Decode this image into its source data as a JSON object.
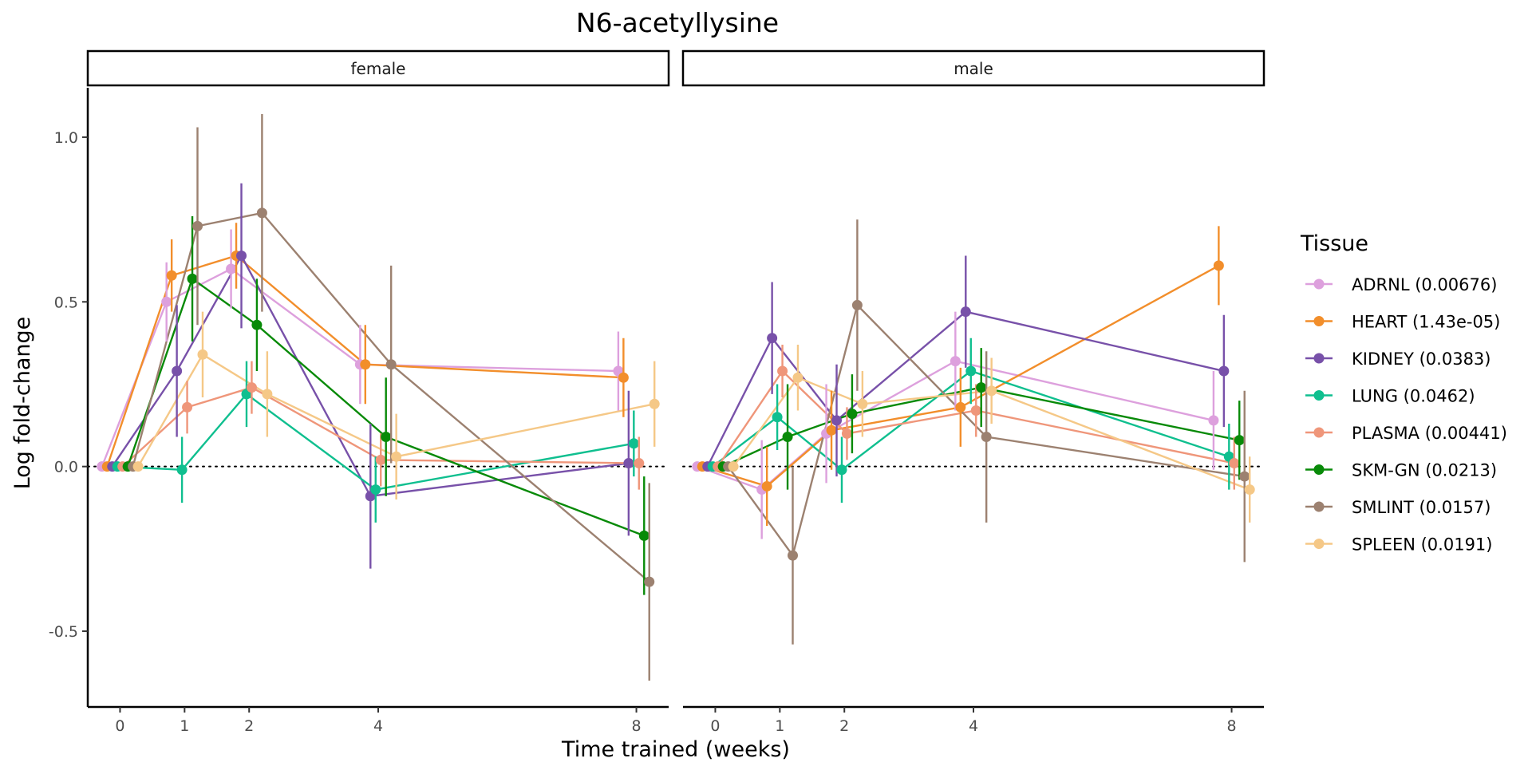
{
  "chart_data": {
    "type": "line",
    "title": "N6-acetyllysine",
    "xlabel": "Time trained (weeks)",
    "ylabel": "Log fold-change",
    "x_ticks": [
      0,
      1,
      2,
      4,
      8
    ],
    "y_ticks": [
      -0.5,
      0.0,
      0.5,
      1.0
    ],
    "y_tick_labels": [
      "-0.5",
      "0.0",
      "0.5",
      "1.0"
    ],
    "xlim": [
      -0.5,
      8.5
    ],
    "ylim": [
      -0.73,
      1.15
    ],
    "reference_line": 0,
    "legend": {
      "title": "Tissue",
      "placement": "right"
    },
    "panels": [
      {
        "label": "female",
        "series": [
          {
            "name": "ADRNL (0.00676)",
            "color": "#DDA0DD",
            "x": [
              0,
              1,
              2,
              4,
              8
            ],
            "y": [
              0,
              0.5,
              0.6,
              0.31,
              0.29
            ],
            "lower": [
              0,
              0.38,
              0.48,
              0.19,
              0.17
            ],
            "upper": [
              0,
              0.62,
              0.72,
              0.43,
              0.41
            ]
          },
          {
            "name": "HEART (1.43e-05)",
            "color": "#F28E2B",
            "x": [
              0,
              1,
              2,
              4,
              8
            ],
            "y": [
              0,
              0.58,
              0.64,
              0.31,
              0.27
            ],
            "lower": [
              0,
              0.47,
              0.54,
              0.19,
              0.15
            ],
            "upper": [
              0,
              0.69,
              0.74,
              0.43,
              0.39
            ]
          },
          {
            "name": "KIDNEY (0.0383)",
            "color": "#7851A9",
            "x": [
              0,
              1,
              2,
              4,
              8
            ],
            "y": [
              0,
              0.29,
              0.64,
              -0.09,
              0.01
            ],
            "lower": [
              0,
              0.09,
              0.42,
              -0.31,
              -0.21
            ],
            "upper": [
              0,
              0.49,
              0.86,
              0.13,
              0.23
            ]
          },
          {
            "name": "LUNG (0.0462)",
            "color": "#0FBF8F",
            "x": [
              0,
              1,
              2,
              4,
              8
            ],
            "y": [
              0,
              -0.01,
              0.22,
              -0.07,
              0.07
            ],
            "lower": [
              0,
              -0.11,
              0.12,
              -0.17,
              -0.03
            ],
            "upper": [
              0,
              0.09,
              0.32,
              0.03,
              0.17
            ]
          },
          {
            "name": "PLASMA (0.00441)",
            "color": "#EF967A",
            "x": [
              0,
              1,
              2,
              4,
              8
            ],
            "y": [
              0,
              0.18,
              0.24,
              0.02,
              0.01
            ],
            "lower": [
              0,
              0.1,
              0.16,
              -0.06,
              -0.07
            ],
            "upper": [
              0,
              0.26,
              0.32,
              0.1,
              0.09
            ]
          },
          {
            "name": "SKM-GN (0.0213)",
            "color": "#088A08",
            "x": [
              0,
              1,
              2,
              4,
              8
            ],
            "y": [
              0,
              0.57,
              0.43,
              0.09,
              -0.21
            ],
            "lower": [
              0,
              0.38,
              0.29,
              -0.09,
              -0.39
            ],
            "upper": [
              0,
              0.76,
              0.57,
              0.27,
              -0.03
            ]
          },
          {
            "name": "SMLINT (0.0157)",
            "color": "#9C8170",
            "x": [
              0,
              1,
              2,
              4,
              8
            ],
            "y": [
              0,
              0.73,
              0.77,
              0.31,
              -0.35
            ],
            "lower": [
              0,
              0.43,
              0.47,
              0.01,
              -0.65
            ],
            "upper": [
              0,
              1.03,
              1.07,
              0.61,
              -0.05
            ]
          },
          {
            "name": "SPLEEN (0.0191)",
            "color": "#F5C887",
            "x": [
              0,
              1,
              2,
              4,
              8
            ],
            "y": [
              0,
              0.34,
              0.22,
              0.03,
              0.19
            ],
            "lower": [
              0,
              0.21,
              0.09,
              -0.1,
              0.06
            ],
            "upper": [
              0,
              0.47,
              0.35,
              0.16,
              0.32
            ]
          }
        ]
      },
      {
        "label": "male",
        "series": [
          {
            "name": "ADRNL (0.00676)",
            "color": "#DDA0DD",
            "x": [
              0,
              1,
              2,
              4,
              8
            ],
            "y": [
              0,
              -0.07,
              0.1,
              0.32,
              0.14
            ],
            "lower": [
              0,
              -0.22,
              -0.05,
              0.17,
              -0.01
            ],
            "upper": [
              0,
              0.08,
              0.25,
              0.47,
              0.29
            ]
          },
          {
            "name": "HEART (1.43e-05)",
            "color": "#F28E2B",
            "x": [
              0,
              1,
              2,
              4,
              8
            ],
            "y": [
              0,
              -0.06,
              0.11,
              0.18,
              0.61
            ],
            "lower": [
              0,
              -0.18,
              -0.01,
              0.06,
              0.49
            ],
            "upper": [
              0,
              0.06,
              0.23,
              0.3,
              0.73
            ]
          },
          {
            "name": "KIDNEY (0.0383)",
            "color": "#7851A9",
            "x": [
              0,
              1,
              2,
              4,
              8
            ],
            "y": [
              0,
              0.39,
              0.14,
              0.47,
              0.29
            ],
            "lower": [
              0,
              0.22,
              -0.03,
              0.3,
              0.12
            ],
            "upper": [
              0,
              0.56,
              0.31,
              0.64,
              0.46
            ]
          },
          {
            "name": "LUNG (0.0462)",
            "color": "#0FBF8F",
            "x": [
              0,
              1,
              2,
              4,
              8
            ],
            "y": [
              0,
              0.15,
              -0.01,
              0.29,
              0.03
            ],
            "lower": [
              0,
              0.05,
              -0.11,
              0.19,
              -0.07
            ],
            "upper": [
              0,
              0.25,
              0.09,
              0.39,
              0.13
            ]
          },
          {
            "name": "PLASMA (0.00441)",
            "color": "#EF967A",
            "x": [
              0,
              1,
              2,
              4,
              8
            ],
            "y": [
              0,
              0.29,
              0.1,
              0.17,
              0.01
            ],
            "lower": [
              0,
              0.21,
              0.02,
              0.09,
              -0.07
            ],
            "upper": [
              0,
              0.37,
              0.18,
              0.25,
              0.09
            ]
          },
          {
            "name": "SKM-GN (0.0213)",
            "color": "#088A08",
            "x": [
              0,
              1,
              2,
              4,
              8
            ],
            "y": [
              0,
              0.09,
              0.16,
              0.24,
              0.08
            ],
            "lower": [
              0,
              -0.07,
              0.04,
              0.12,
              -0.04
            ],
            "upper": [
              0,
              0.25,
              0.28,
              0.36,
              0.2
            ]
          },
          {
            "name": "SMLINT (0.0157)",
            "color": "#9C8170",
            "x": [
              0,
              1,
              2,
              4,
              8
            ],
            "y": [
              0,
              -0.27,
              0.49,
              0.09,
              -0.03
            ],
            "lower": [
              0,
              -0.54,
              0.23,
              -0.17,
              -0.29
            ],
            "upper": [
              0,
              0.0,
              0.75,
              0.35,
              0.23
            ]
          },
          {
            "name": "SPLEEN (0.0191)",
            "color": "#F5C887",
            "x": [
              0,
              1,
              2,
              4,
              8
            ],
            "y": [
              0,
              0.27,
              0.19,
              0.23,
              -0.07
            ],
            "lower": [
              0,
              0.17,
              0.09,
              0.13,
              -0.17
            ],
            "upper": [
              0,
              0.37,
              0.29,
              0.33,
              0.03
            ]
          }
        ]
      }
    ]
  }
}
